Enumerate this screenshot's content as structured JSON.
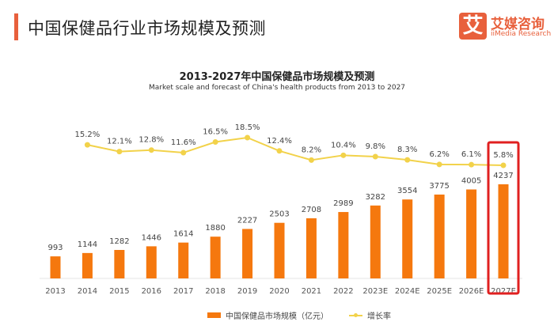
{
  "header": {
    "title": "中国保健品行业市场规模及预测",
    "logo_mark": "艾",
    "logo_cn": "艾媒咨询",
    "logo_en": "iiMedia Research"
  },
  "chart_data": {
    "type": "bar+line",
    "title": "2013-2027年中国保健品市场规模及预测",
    "subtitle": "Market scale and forecast of China's health products from 2013 to 2027",
    "categories": [
      "2013",
      "2014",
      "2015",
      "2016",
      "2017",
      "2018",
      "2019",
      "2020",
      "2021",
      "2022",
      "2023E",
      "2024E",
      "2025E",
      "2026E",
      "2027E"
    ],
    "series": [
      {
        "name": "中国保健品市场规模（亿元）",
        "type": "bar",
        "color": "#f5780e",
        "values": [
          993,
          1144,
          1282,
          1446,
          1614,
          1880,
          2227,
          2503,
          2708,
          2989,
          3282,
          3554,
          3775,
          4005,
          4237
        ]
      },
      {
        "name": "增长率",
        "type": "line",
        "color": "#f2d24a",
        "values": [
          null,
          15.2,
          12.1,
          12.8,
          11.6,
          16.5,
          18.5,
          12.4,
          8.2,
          10.4,
          9.8,
          8.3,
          6.2,
          6.1,
          5.8
        ],
        "labels": [
          "",
          "15.2%",
          "12.1%",
          "12.8%",
          "11.6%",
          "16.5%",
          "18.5%",
          "12.4%",
          "8.2%",
          "10.4%",
          "9.8%",
          "8.3%",
          "6.2%",
          "6.1%",
          "5.8%"
        ]
      }
    ],
    "highlight": "2027E",
    "highlight_color": "#e02020",
    "grid": false,
    "legend": "bottom"
  }
}
